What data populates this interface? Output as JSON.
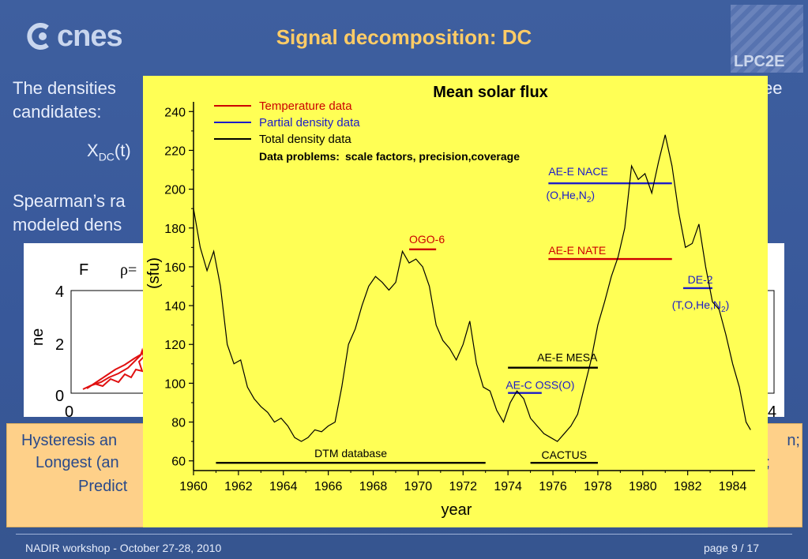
{
  "slide": {
    "title": "Signal decomposition: DC",
    "logo_left": "cnes",
    "logo_right": "LPC2E",
    "text_line1_start": "The densities",
    "text_line1_end": "ee",
    "text_line2": "candidates:",
    "text_line3_main": "X",
    "text_line3_sub": "DC",
    "text_line3_rest": "(t)",
    "text_line4": "Spearman’s ra",
    "text_line5": "modeled dens",
    "box_line1_start": "Hysteresis an",
    "box_line1_end": "n;",
    "box_line2_start": "Longest (an",
    "box_line2_end": ";",
    "box_line3_start": "Predict",
    "footer_left": "NADIR workshop  -  October 27-28, 2010",
    "footer_right": "page 9 / 17"
  },
  "scatter_panel": {
    "label_F": "F",
    "label_rho": "ρ=",
    "ylabel": "ne",
    "yticks": [
      "0",
      "2",
      "4"
    ],
    "xtick_left": "0",
    "xtick_right": "4",
    "series_color": "#e01010"
  },
  "colors": {
    "temperature": "#cc0000",
    "partial": "#1c1cc8",
    "total": "#000000",
    "background_chart": "#ffff55",
    "title_accent": "#ffcc66"
  },
  "chart_data": {
    "type": "line",
    "title": "Mean solar flux",
    "xlabel": "year",
    "ylabel": "(sfu)",
    "xlim": [
      1960,
      1985
    ],
    "ylim": [
      55,
      245
    ],
    "xticks": [
      1960,
      1962,
      1964,
      1966,
      1968,
      1970,
      1972,
      1974,
      1976,
      1978,
      1980,
      1982,
      1984
    ],
    "yticks": [
      60,
      80,
      100,
      120,
      140,
      160,
      180,
      200,
      220,
      240
    ],
    "legend": {
      "placement": "top-left",
      "entries": [
        {
          "label": "Temperature data",
          "color": "#cc0000"
        },
        {
          "label": "Partial density data",
          "color": "#1c1cc8"
        },
        {
          "label": "Total density data",
          "color": "#000000"
        }
      ],
      "note_bold": "Data problems:",
      "note_rest": "scale factors, precision,coverage"
    },
    "series": [
      {
        "name": "",
        "color": "#000000",
        "x": [
          1960.0,
          1960.3,
          1960.6,
          1960.9,
          1961.2,
          1961.5,
          1961.8,
          1962.1,
          1962.4,
          1962.7,
          1963.0,
          1963.3,
          1963.6,
          1963.9,
          1964.2,
          1964.5,
          1964.8,
          1965.1,
          1965.4,
          1965.7,
          1966.0,
          1966.3,
          1966.6,
          1966.9,
          1967.2,
          1967.5,
          1967.8,
          1968.1,
          1968.4,
          1968.7,
          1969.0,
          1969.3,
          1969.6,
          1969.9,
          1970.2,
          1970.5,
          1970.8,
          1971.1,
          1971.4,
          1971.7,
          1972.0,
          1972.3,
          1972.6,
          1972.9,
          1973.2,
          1973.5,
          1973.8,
          1974.1,
          1974.4,
          1974.7,
          1975.0,
          1975.3,
          1975.6,
          1975.9,
          1976.2,
          1976.5,
          1976.8,
          1977.1,
          1977.4,
          1977.7,
          1978.0,
          1978.3,
          1978.6,
          1978.9,
          1979.2,
          1979.5,
          1979.8,
          1980.1,
          1980.4,
          1980.7,
          1981.0,
          1981.3,
          1981.6,
          1981.9,
          1982.2,
          1982.5,
          1982.8,
          1983.1,
          1983.4,
          1983.7,
          1984.0,
          1984.3,
          1984.6,
          1984.8
        ],
        "y": [
          190,
          170,
          158,
          168,
          150,
          120,
          110,
          112,
          98,
          92,
          88,
          85,
          80,
          82,
          78,
          72,
          70,
          72,
          76,
          75,
          78,
          80,
          98,
          120,
          128,
          140,
          150,
          155,
          152,
          148,
          152,
          168,
          162,
          164,
          160,
          150,
          130,
          122,
          118,
          112,
          120,
          132,
          110,
          98,
          96,
          86,
          80,
          90,
          96,
          92,
          82,
          78,
          74,
          72,
          70,
          74,
          78,
          84,
          98,
          112,
          130,
          142,
          155,
          165,
          180,
          212,
          205,
          208,
          198,
          214,
          228,
          212,
          188,
          170,
          172,
          182,
          160,
          142,
          138,
          125,
          110,
          98,
          80,
          76
        ]
      }
    ],
    "annotations": [
      {
        "label": "OGO-6",
        "color": "#cc0000",
        "x_start": 1969.6,
        "x_end": 1970.8,
        "y": 169
      },
      {
        "label": "AE-E NACE",
        "color": "#1c1cc8",
        "x_start": 1975.8,
        "x_end": 1981.3,
        "y": 203
      },
      {
        "label": "(O,He,N",
        "sub": "2",
        "close": ")",
        "color": "#1c1cc8"
      },
      {
        "label": "AE-E NATE",
        "color": "#cc0000",
        "x_start": 1975.8,
        "x_end": 1981.3,
        "y": 164
      },
      {
        "label": "DE-2",
        "color": "#1c1cc8",
        "x_start": 1981.8,
        "x_end": 1983.1,
        "y": 149
      },
      {
        "label": "(T,O,He,N",
        "sub": "2",
        "close": ")",
        "color": "#1c1cc8"
      },
      {
        "label": "AE-E MESA",
        "color": "#000000",
        "x_start": 1974.0,
        "x_end": 1978.0,
        "y": 108
      },
      {
        "label": "AE-C OSS(O)",
        "color": "#1c1cc8",
        "x_start": 1974.0,
        "x_end": 1975.5,
        "y": 95
      },
      {
        "label": "DTM database",
        "color": "#000000",
        "x_start": 1961.0,
        "x_end": 1973.0,
        "y": 59
      },
      {
        "label": "CACTUS",
        "color": "#000000",
        "x_start": 1975.0,
        "x_end": 1978.0,
        "y": 59
      }
    ]
  }
}
